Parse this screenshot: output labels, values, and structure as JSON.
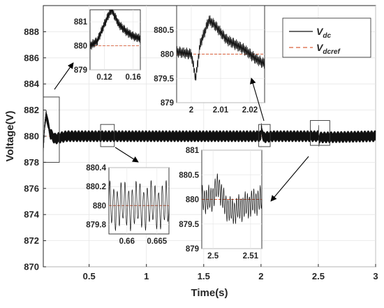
{
  "chart_data": {
    "type": "line",
    "title": "",
    "xlabel": "Time(s)",
    "ylabel": "Voltage(V)",
    "xlim": [
      0.1,
      3
    ],
    "ylim": [
      870,
      890
    ],
    "x_ticks": [
      "0.5",
      "1",
      "1.5",
      "2",
      "2.5",
      "3"
    ],
    "y_ticks": [
      "870",
      "872",
      "874",
      "876",
      "878",
      "880",
      "882",
      "884",
      "886",
      "888"
    ],
    "legend": {
      "position": "top-right",
      "entries": [
        {
          "base": "V",
          "sub": "dc",
          "color": "#111111",
          "style": "solid"
        },
        {
          "base": "V",
          "sub": "dcref",
          "color": "#d9603b",
          "style": "dashed"
        }
      ]
    },
    "series": [
      {
        "name": "Vdc",
        "color": "#111111",
        "points": [
          [
            0.1,
            879.0
          ],
          [
            0.11,
            880.5
          ],
          [
            0.125,
            881.7
          ],
          [
            0.14,
            881.0
          ],
          [
            0.16,
            880.2
          ],
          [
            0.2,
            879.8
          ],
          [
            0.25,
            879.9
          ],
          [
            0.3,
            880.0
          ],
          [
            1.0,
            880.0
          ],
          [
            2.0,
            880.0
          ],
          [
            2.003,
            880.7
          ],
          [
            2.01,
            880.3
          ],
          [
            2.02,
            879.9
          ],
          [
            2.1,
            880.0
          ],
          [
            2.5,
            880.0
          ],
          [
            2.501,
            880.8
          ],
          [
            2.505,
            879.6
          ],
          [
            2.51,
            879.9
          ],
          [
            3.0,
            880.0
          ]
        ],
        "noise_band": 0.45
      },
      {
        "name": "Vdcref",
        "color": "#d9603b",
        "style": "dashed",
        "points": [
          [
            0.1,
            880
          ],
          [
            3.0,
            880
          ]
        ]
      }
    ],
    "zoom_rects": [
      {
        "x": [
          0.1,
          0.24
        ],
        "y": [
          878,
          883
        ]
      },
      {
        "x": [
          0.6,
          0.72
        ],
        "y": [
          879.2,
          880.9
        ]
      },
      {
        "x": [
          1.98,
          2.08
        ],
        "y": [
          879.2,
          880.9
        ]
      },
      {
        "x": [
          2.43,
          2.6
        ],
        "y": [
          879.3,
          881.2
        ]
      }
    ],
    "insets": [
      {
        "id": "inset1",
        "xlim": [
          0.1,
          0.17
        ],
        "ylim": [
          879,
          881.5
        ],
        "x_ticks": [
          0.12,
          0.16
        ],
        "x_tick_labels": [
          "0.12",
          "0.16"
        ],
        "y_ticks": [
          879,
          880,
          881
        ],
        "y_tick_labels": [
          "879",
          "880",
          "881"
        ],
        "ref": 880,
        "points": [
          [
            0.1,
            880.0
          ],
          [
            0.11,
            880.2
          ],
          [
            0.12,
            880.9
          ],
          [
            0.126,
            881.3
          ],
          [
            0.13,
            881.5
          ],
          [
            0.135,
            881.2
          ],
          [
            0.14,
            880.9
          ],
          [
            0.15,
            880.6
          ],
          [
            0.16,
            880.4
          ],
          [
            0.17,
            880.3
          ]
        ],
        "noise": 0.2,
        "cycles": 60
      },
      {
        "id": "inset2",
        "xlim": [
          1.995,
          2.025
        ],
        "ylim": [
          879,
          881
        ],
        "x_ticks": [
          2.0,
          2.01,
          2.02
        ],
        "x_tick_labels": [
          "2",
          "2.01",
          "2.02"
        ],
        "y_ticks": [
          879,
          879.5,
          880,
          880.5
        ],
        "y_tick_labels": [
          "879",
          "879.5",
          "880",
          "880.5"
        ],
        "ref": 880,
        "points": [
          [
            1.995,
            880.05
          ],
          [
            2.0,
            880.0
          ],
          [
            2.0015,
            879.5
          ],
          [
            2.003,
            880.2
          ],
          [
            2.006,
            880.7
          ],
          [
            2.008,
            880.6
          ],
          [
            2.012,
            880.3
          ],
          [
            2.018,
            880.1
          ],
          [
            2.022,
            879.9
          ],
          [
            2.025,
            879.8
          ]
        ],
        "noise": 0.12,
        "cycles": 90
      },
      {
        "id": "inset3",
        "xlim": [
          0.657,
          0.667
        ],
        "ylim": [
          879.7,
          880.4
        ],
        "x_ticks": [
          0.66,
          0.665
        ],
        "x_tick_labels": [
          "0.66",
          "0.665"
        ],
        "y_ticks": [
          879.8,
          880,
          880.2,
          880.4
        ],
        "y_tick_labels": [
          "879.8",
          "880",
          "880.2",
          "880.4"
        ],
        "ref": 880,
        "points": [
          [
            0.657,
            880.0
          ],
          [
            0.667,
            880.0
          ]
        ],
        "noise": 0.27,
        "cycles": 16
      },
      {
        "id": "inset4",
        "xlim": [
          2.497,
          2.513
        ],
        "ylim": [
          879,
          881
        ],
        "x_ticks": [
          2.5,
          2.51
        ],
        "x_tick_labels": [
          "2.5",
          "2.51"
        ],
        "y_ticks": [
          879,
          879.5,
          880,
          880.5,
          881
        ],
        "y_tick_labels": [
          "879",
          "879.5",
          "880",
          "880.5",
          "881"
        ],
        "ref": 880,
        "points": [
          [
            2.497,
            880.0
          ],
          [
            2.4995,
            880.0
          ],
          [
            2.5015,
            880.3
          ],
          [
            2.503,
            879.9
          ],
          [
            2.505,
            879.75
          ],
          [
            2.508,
            879.85
          ],
          [
            2.513,
            880.0
          ]
        ],
        "noise": 0.3,
        "cycles": 28
      }
    ]
  }
}
